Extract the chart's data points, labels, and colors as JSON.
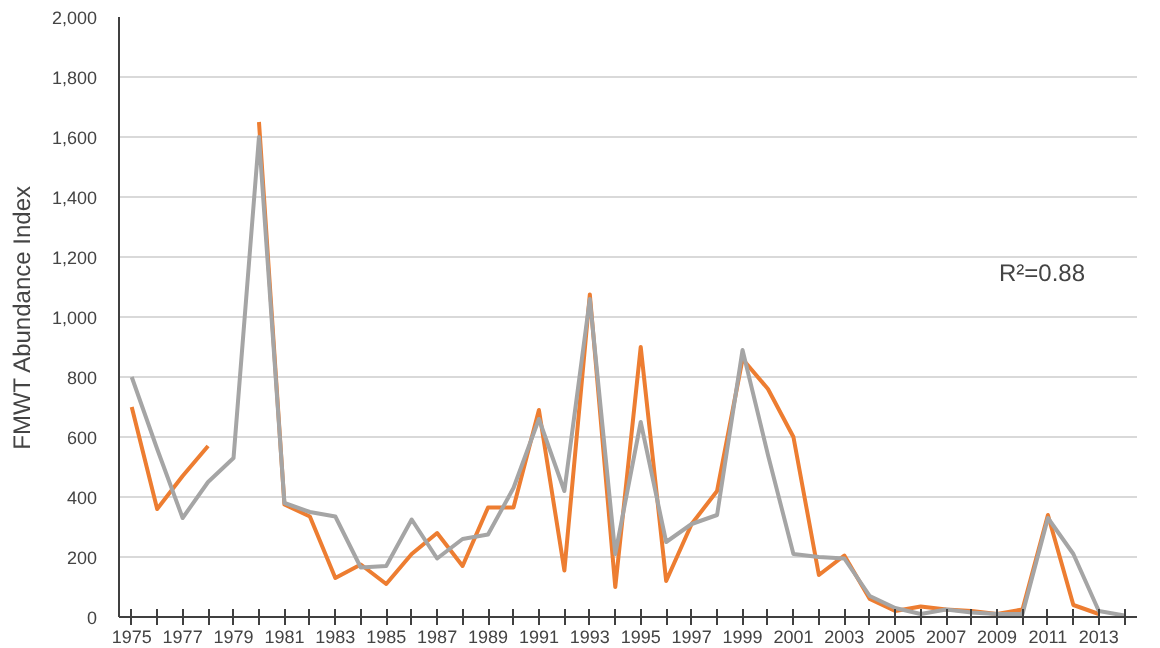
{
  "chart_data": {
    "type": "line",
    "ylabel": "FMWT Abundance Index",
    "x": [
      1975,
      1976,
      1977,
      1978,
      1979,
      1980,
      1981,
      1982,
      1983,
      1984,
      1985,
      1986,
      1987,
      1988,
      1989,
      1990,
      1991,
      1992,
      1993,
      1994,
      1995,
      1996,
      1997,
      1998,
      1999,
      2000,
      2001,
      2002,
      2003,
      2004,
      2005,
      2006,
      2007,
      2008,
      2009,
      2010,
      2011,
      2012,
      2013,
      2014
    ],
    "series": [
      {
        "color": "#ed7d31",
        "values": [
          700,
          360,
          470,
          570,
          null,
          1650,
          375,
          335,
          130,
          175,
          110,
          210,
          280,
          170,
          365,
          365,
          690,
          155,
          1075,
          100,
          900,
          120,
          310,
          420,
          860,
          760,
          600,
          140,
          205,
          60,
          20,
          35,
          25,
          20,
          10,
          25,
          340,
          40,
          10,
          null
        ]
      },
      {
        "color": "#a5a5a5",
        "values": [
          800,
          560,
          330,
          450,
          530,
          1600,
          380,
          350,
          335,
          165,
          170,
          325,
          195,
          260,
          275,
          430,
          660,
          420,
          1060,
          210,
          650,
          250,
          310,
          340,
          890,
          540,
          210,
          200,
          195,
          70,
          30,
          10,
          25,
          15,
          10,
          10,
          330,
          210,
          20,
          5
        ]
      }
    ],
    "xlim": [
      1974.5,
      2014.5
    ],
    "xticks": [
      1975,
      {
        "value": 1976,
        "label": null
      },
      1977,
      {
        "value": 1978,
        "label": null
      },
      1979,
      {
        "value": 1980,
        "label": null
      },
      1981,
      {
        "value": 1982,
        "label": null
      },
      1983,
      {
        "value": 1984,
        "label": null
      },
      1985,
      {
        "value": 1986,
        "label": null
      },
      1987,
      {
        "value": 1988,
        "label": null
      },
      1989,
      {
        "value": 1990,
        "label": null
      },
      1991,
      {
        "value": 1992,
        "label": null
      },
      1993,
      {
        "value": 1994,
        "label": null
      },
      1995,
      {
        "value": 1996,
        "label": null
      },
      1997,
      {
        "value": 1998,
        "label": null
      },
      1999,
      {
        "value": 2000,
        "label": null
      },
      2001,
      {
        "value": 2002,
        "label": null
      },
      2003,
      {
        "value": 2004,
        "label": null
      },
      2005,
      {
        "value": 2006,
        "label": null
      },
      2007,
      {
        "value": 2008,
        "label": null
      },
      2009,
      {
        "value": 2010,
        "label": null
      },
      2011,
      {
        "value": 2012,
        "label": null
      },
      2013,
      {
        "value": 2014,
        "label": null
      }
    ],
    "ylim": [
      0,
      2000
    ],
    "yticks": [
      {
        "value": 0,
        "label": "0"
      },
      {
        "value": 200,
        "label": "200"
      },
      {
        "value": 400,
        "label": "400"
      },
      {
        "value": 600,
        "label": "600"
      },
      {
        "value": 800,
        "label": "800"
      },
      {
        "value": 1000,
        "label": "1,000"
      },
      {
        "value": 1200,
        "label": "1,200"
      },
      {
        "value": 1400,
        "label": "1,400"
      },
      {
        "value": 1600,
        "label": "1,600"
      },
      {
        "value": 1800,
        "label": "1,800"
      },
      {
        "value": 2000,
        "label": "2,000"
      }
    ],
    "grid": "y",
    "line_style": "solid",
    "marker": "none",
    "annotations": [
      "R²=0.88"
    ]
  }
}
